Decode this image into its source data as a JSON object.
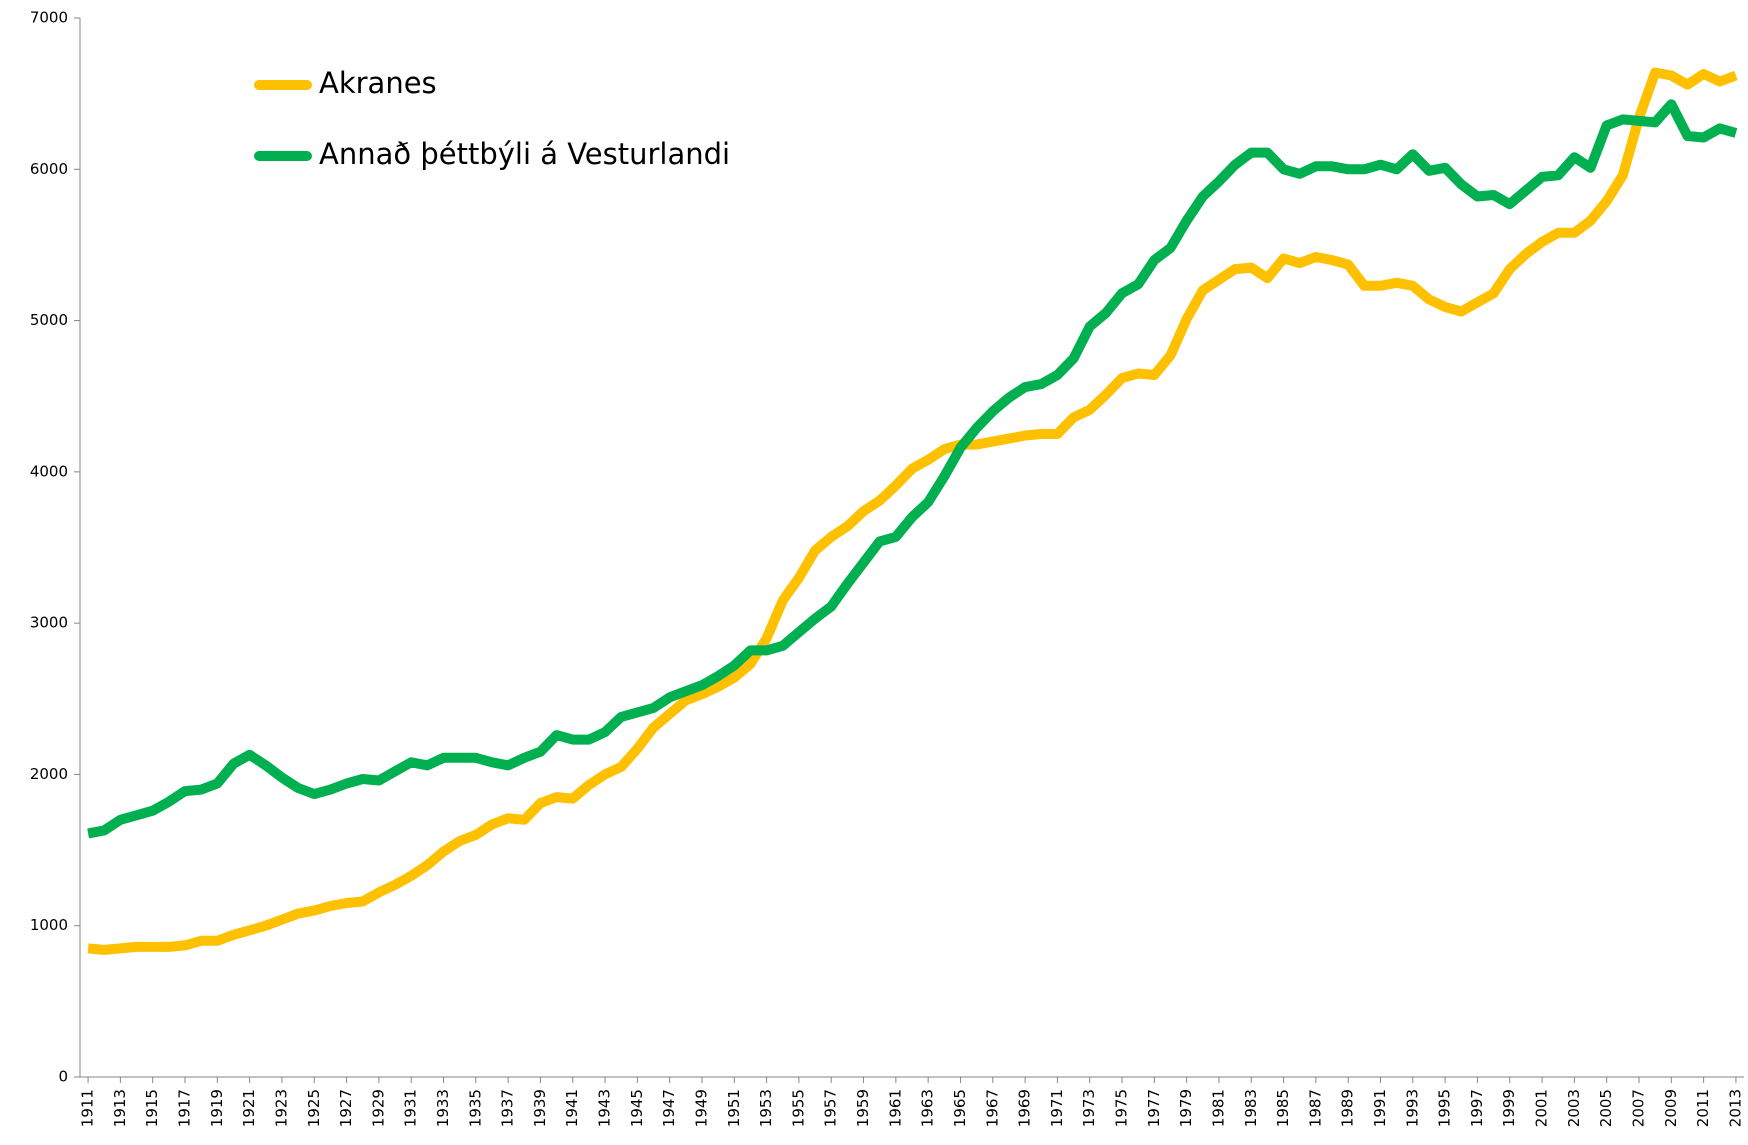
{
  "chart_data": {
    "type": "line",
    "x": [
      1911,
      1912,
      1913,
      1914,
      1915,
      1916,
      1917,
      1918,
      1919,
      1920,
      1921,
      1922,
      1923,
      1924,
      1925,
      1926,
      1927,
      1928,
      1929,
      1930,
      1931,
      1932,
      1933,
      1934,
      1935,
      1936,
      1937,
      1938,
      1939,
      1940,
      1941,
      1942,
      1943,
      1944,
      1945,
      1946,
      1947,
      1948,
      1949,
      1950,
      1951,
      1952,
      1953,
      1954,
      1955,
      1956,
      1957,
      1958,
      1959,
      1960,
      1961,
      1962,
      1963,
      1964,
      1965,
      1966,
      1967,
      1968,
      1969,
      1970,
      1971,
      1972,
      1973,
      1974,
      1975,
      1976,
      1977,
      1978,
      1979,
      1980,
      1981,
      1982,
      1983,
      1984,
      1985,
      1986,
      1987,
      1988,
      1989,
      1990,
      1991,
      1992,
      1993,
      1994,
      1995,
      1996,
      1997,
      1998,
      1999,
      2000,
      2001,
      2002,
      2003,
      2004,
      2005,
      2006,
      2007,
      2008,
      2009,
      2010,
      2011,
      2012,
      2013
    ],
    "series": [
      {
        "name": "Akranes",
        "color": "#FFC000",
        "values": [
          850,
          840,
          850,
          860,
          860,
          860,
          870,
          900,
          900,
          940,
          970,
          1000,
          1040,
          1080,
          1100,
          1130,
          1150,
          1160,
          1220,
          1270,
          1330,
          1400,
          1490,
          1560,
          1600,
          1670,
          1710,
          1700,
          1810,
          1850,
          1840,
          1930,
          2000,
          2050,
          2170,
          2310,
          2400,
          2490,
          2530,
          2580,
          2640,
          2730,
          2900,
          3150,
          3300,
          3480,
          3570,
          3640,
          3740,
          3810,
          3910,
          4020,
          4080,
          4150,
          4180,
          4180,
          4200,
          4220,
          4240,
          4250,
          4250,
          4360,
          4410,
          4510,
          4620,
          4650,
          4640,
          4770,
          5010,
          5200,
          5270,
          5340,
          5350,
          5280,
          5410,
          5380,
          5420,
          5400,
          5370,
          5230,
          5230,
          5250,
          5230,
          5140,
          5090,
          5060,
          5120,
          5180,
          5340,
          5440,
          5520,
          5580,
          5580,
          5660,
          5790,
          5960,
          6340,
          6640,
          6620,
          6560,
          6630,
          6580,
          6620
        ]
      },
      {
        "name": "Annað þéttbýli á Vesturlandi",
        "color": "#00B050",
        "values": [
          1610,
          1630,
          1700,
          1730,
          1760,
          1820,
          1890,
          1900,
          1940,
          2070,
          2130,
          2060,
          1980,
          1910,
          1870,
          1900,
          1940,
          1970,
          1960,
          2020,
          2080,
          2060,
          2110,
          2110,
          2110,
          2080,
          2060,
          2110,
          2150,
          2260,
          2230,
          2230,
          2280,
          2380,
          2410,
          2440,
          2510,
          2550,
          2590,
          2650,
          2720,
          2820,
          2820,
          2850,
          2940,
          3030,
          3110,
          3260,
          3400,
          3540,
          3570,
          3700,
          3800,
          3970,
          4160,
          4290,
          4400,
          4490,
          4560,
          4580,
          4640,
          4750,
          4960,
          5050,
          5180,
          5240,
          5400,
          5480,
          5660,
          5820,
          5920,
          6030,
          6110,
          6110,
          6000,
          5970,
          6020,
          6020,
          6000,
          6000,
          6030,
          6000,
          6100,
          5990,
          6010,
          5900,
          5820,
          5830,
          5770,
          5860,
          5950,
          5960,
          6080,
          6010,
          6290,
          6330,
          6320,
          6310,
          6430,
          6220,
          6210,
          6270,
          6240
        ]
      }
    ],
    "xlim": [
      1910.5,
      2013.5
    ],
    "xticks": [
      1911,
      1913,
      1915,
      1917,
      1919,
      1921,
      1923,
      1925,
      1927,
      1929,
      1931,
      1933,
      1935,
      1937,
      1939,
      1941,
      1943,
      1945,
      1947,
      1949,
      1951,
      1953,
      1955,
      1957,
      1959,
      1961,
      1963,
      1965,
      1967,
      1969,
      1971,
      1973,
      1975,
      1977,
      1979,
      1981,
      1983,
      1985,
      1987,
      1989,
      1991,
      1993,
      1995,
      1997,
      1999,
      2001,
      2003,
      2005,
      2007,
      2009,
      2011,
      2013
    ],
    "ylim": [
      0,
      7000
    ],
    "yticks": [
      0,
      1000,
      2000,
      3000,
      4000,
      5000,
      6000,
      7000
    ],
    "legend": "upper left"
  }
}
